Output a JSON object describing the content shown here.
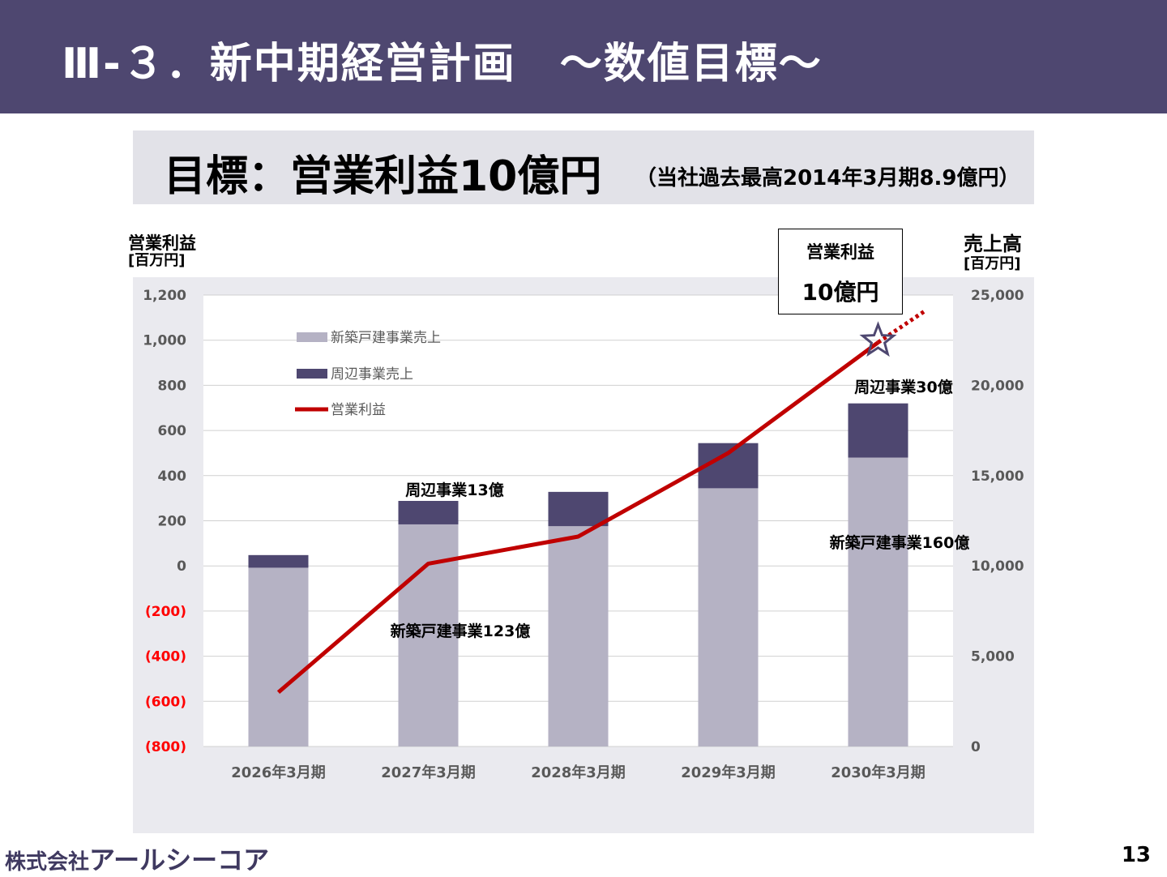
{
  "header": {
    "title": "Ⅲ-３．新中期経営計画　～数値目標～"
  },
  "goal": {
    "main": "目標：営業利益10億円",
    "sub": "（当社過去最高2014年3月期8.9億円）"
  },
  "left_axis_title": {
    "line1": "営業利益",
    "line2": "[百万円]"
  },
  "right_axis_title": {
    "line1": "売上高",
    "line2": "[百万円]"
  },
  "callout": {
    "line1": "営業利益",
    "line2": "10億円"
  },
  "colors": {
    "header": "#4e4770",
    "bar_main": "#b5b2c4",
    "bar_peripheral": "#4e4770",
    "profit_line": "#c00000",
    "negative_tick": "#ff0000"
  },
  "chart_data": {
    "type": "bar+line",
    "categories": [
      "2026年3月期",
      "2027年3月期",
      "2028年3月期",
      "2029年3月期",
      "2030年3月期"
    ],
    "left_axis": {
      "label": "営業利益",
      "unit": "百万円",
      "ylim": [
        -800,
        1200
      ],
      "ticks": [
        "1,200",
        "1,000",
        "800",
        "600",
        "400",
        "200",
        "0",
        "(200)",
        "(400)",
        "(600)",
        "(800)"
      ]
    },
    "right_axis": {
      "label": "売上高",
      "unit": "百万円",
      "ylim": [
        0,
        25000
      ],
      "ticks": [
        "25,000",
        "20,000",
        "15,000",
        "10,000",
        "5,000",
        "0"
      ]
    },
    "series": [
      {
        "name": "新築戸建事業売上",
        "type": "bar",
        "axis": "right",
        "values": [
          9900,
          12300,
          12200,
          14300,
          16000
        ]
      },
      {
        "name": "周辺事業売上",
        "type": "bar",
        "axis": "right",
        "values": [
          700,
          1300,
          1900,
          2500,
          3000
        ]
      },
      {
        "name": "営業利益",
        "type": "line",
        "axis": "left",
        "values": [
          -560,
          10,
          130,
          500,
          990
        ]
      }
    ],
    "projection": {
      "style": "dotted",
      "to_value": 1130
    },
    "target_marker": "star-icon",
    "annotations": [
      "周辺事業13億",
      "新築戸建事業123億",
      "周辺事業30億",
      "新築戸建事業160億"
    ],
    "grid": true,
    "legend": "top-left"
  },
  "footer": {
    "company_prefix": "株式会社",
    "company_name": "アールシーコア",
    "page": "13"
  }
}
